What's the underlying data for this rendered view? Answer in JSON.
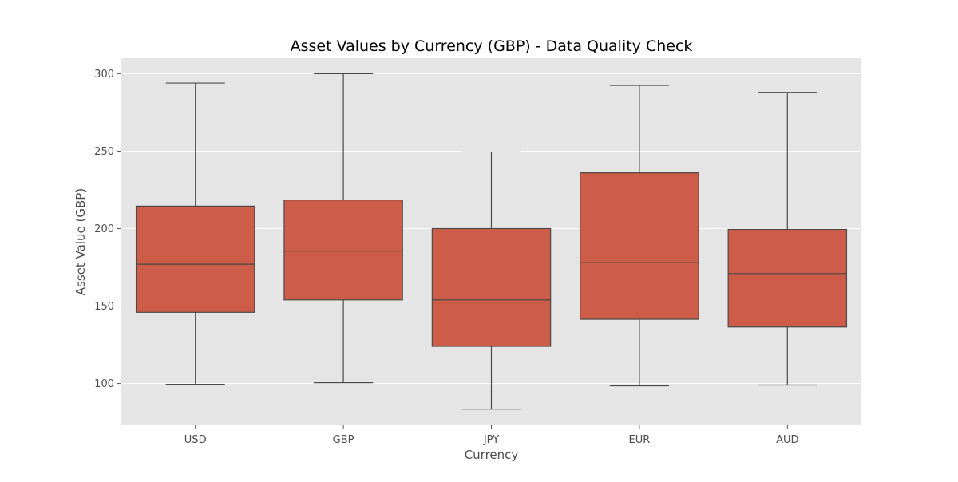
{
  "chart_data": {
    "type": "box",
    "title": "Asset Values by Currency (GBP) - Data Quality Check",
    "xlabel": "Currency",
    "ylabel": "Asset Value (GBP)",
    "categories": [
      "USD",
      "GBP",
      "JPY",
      "EUR",
      "AUD"
    ],
    "boxes": [
      {
        "category": "USD",
        "min": 99.5,
        "q1": 146,
        "median": 177,
        "q3": 214.5,
        "max": 294
      },
      {
        "category": "GBP",
        "min": 100.5,
        "q1": 154,
        "median": 185.5,
        "q3": 218.5,
        "max": 300
      },
      {
        "category": "JPY",
        "min": 83.5,
        "q1": 124,
        "median": 154,
        "q3": 200,
        "max": 249.5
      },
      {
        "category": "EUR",
        "min": 98.5,
        "q1": 141.5,
        "median": 178,
        "q3": 236,
        "max": 292.5
      },
      {
        "category": "AUD",
        "min": 99,
        "q1": 136.5,
        "median": 171,
        "q3": 199.5,
        "max": 288
      }
    ],
    "yticks": [
      100,
      150,
      200,
      250,
      300
    ],
    "ylim": [
      73,
      310
    ],
    "grid": true,
    "colors": {
      "box_fill": "#cd5c48",
      "box_edge": "#4a4a4a",
      "plot_background": "#e5e5e5",
      "grid": "#ffffff"
    }
  }
}
